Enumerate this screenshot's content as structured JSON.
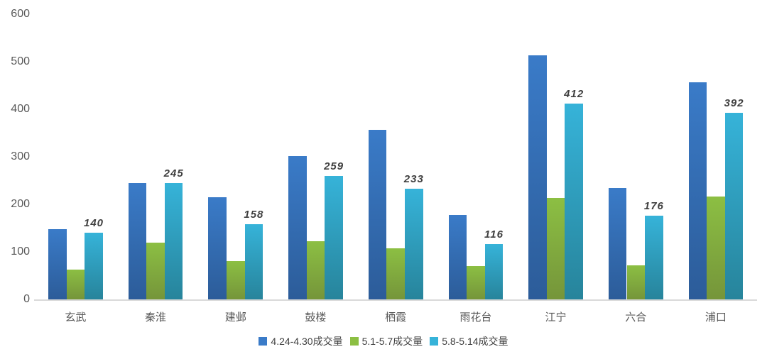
{
  "chart_data": {
    "type": "bar",
    "title": "",
    "categories": [
      "玄武",
      "秦淮",
      "建邺",
      "鼓楼",
      "栖霞",
      "雨花台",
      "江宁",
      "六合",
      "浦口"
    ],
    "series": [
      {
        "name": "4.24-4.30成交量",
        "values": [
          148,
          245,
          215,
          301,
          357,
          178,
          514,
          235,
          456
        ],
        "color": "#3A7BC8",
        "color_bottom": "#2C5C99",
        "data_labels": false
      },
      {
        "name": "5.1-5.7成交量",
        "values": [
          62,
          119,
          80,
          122,
          107,
          70,
          214,
          72,
          216
        ],
        "color": "#8CBF43",
        "color_bottom": "#75953A",
        "data_labels": false
      },
      {
        "name": "5.8-5.14成交量",
        "values": [
          140,
          245,
          158,
          259,
          233,
          116,
          412,
          176,
          392
        ],
        "color": "#36B3D9",
        "color_bottom": "#27849B",
        "data_labels": true
      }
    ],
    "ylim": [
      0,
      600
    ],
    "yticks": [
      0,
      100,
      200,
      300,
      400,
      500,
      600
    ],
    "grid": false,
    "legend_position": "bottom",
    "xlabel": "",
    "ylabel": "",
    "axis_line_color": "#d9d9d9",
    "tick_label_color": "#595959",
    "data_label_color": "#404040"
  }
}
